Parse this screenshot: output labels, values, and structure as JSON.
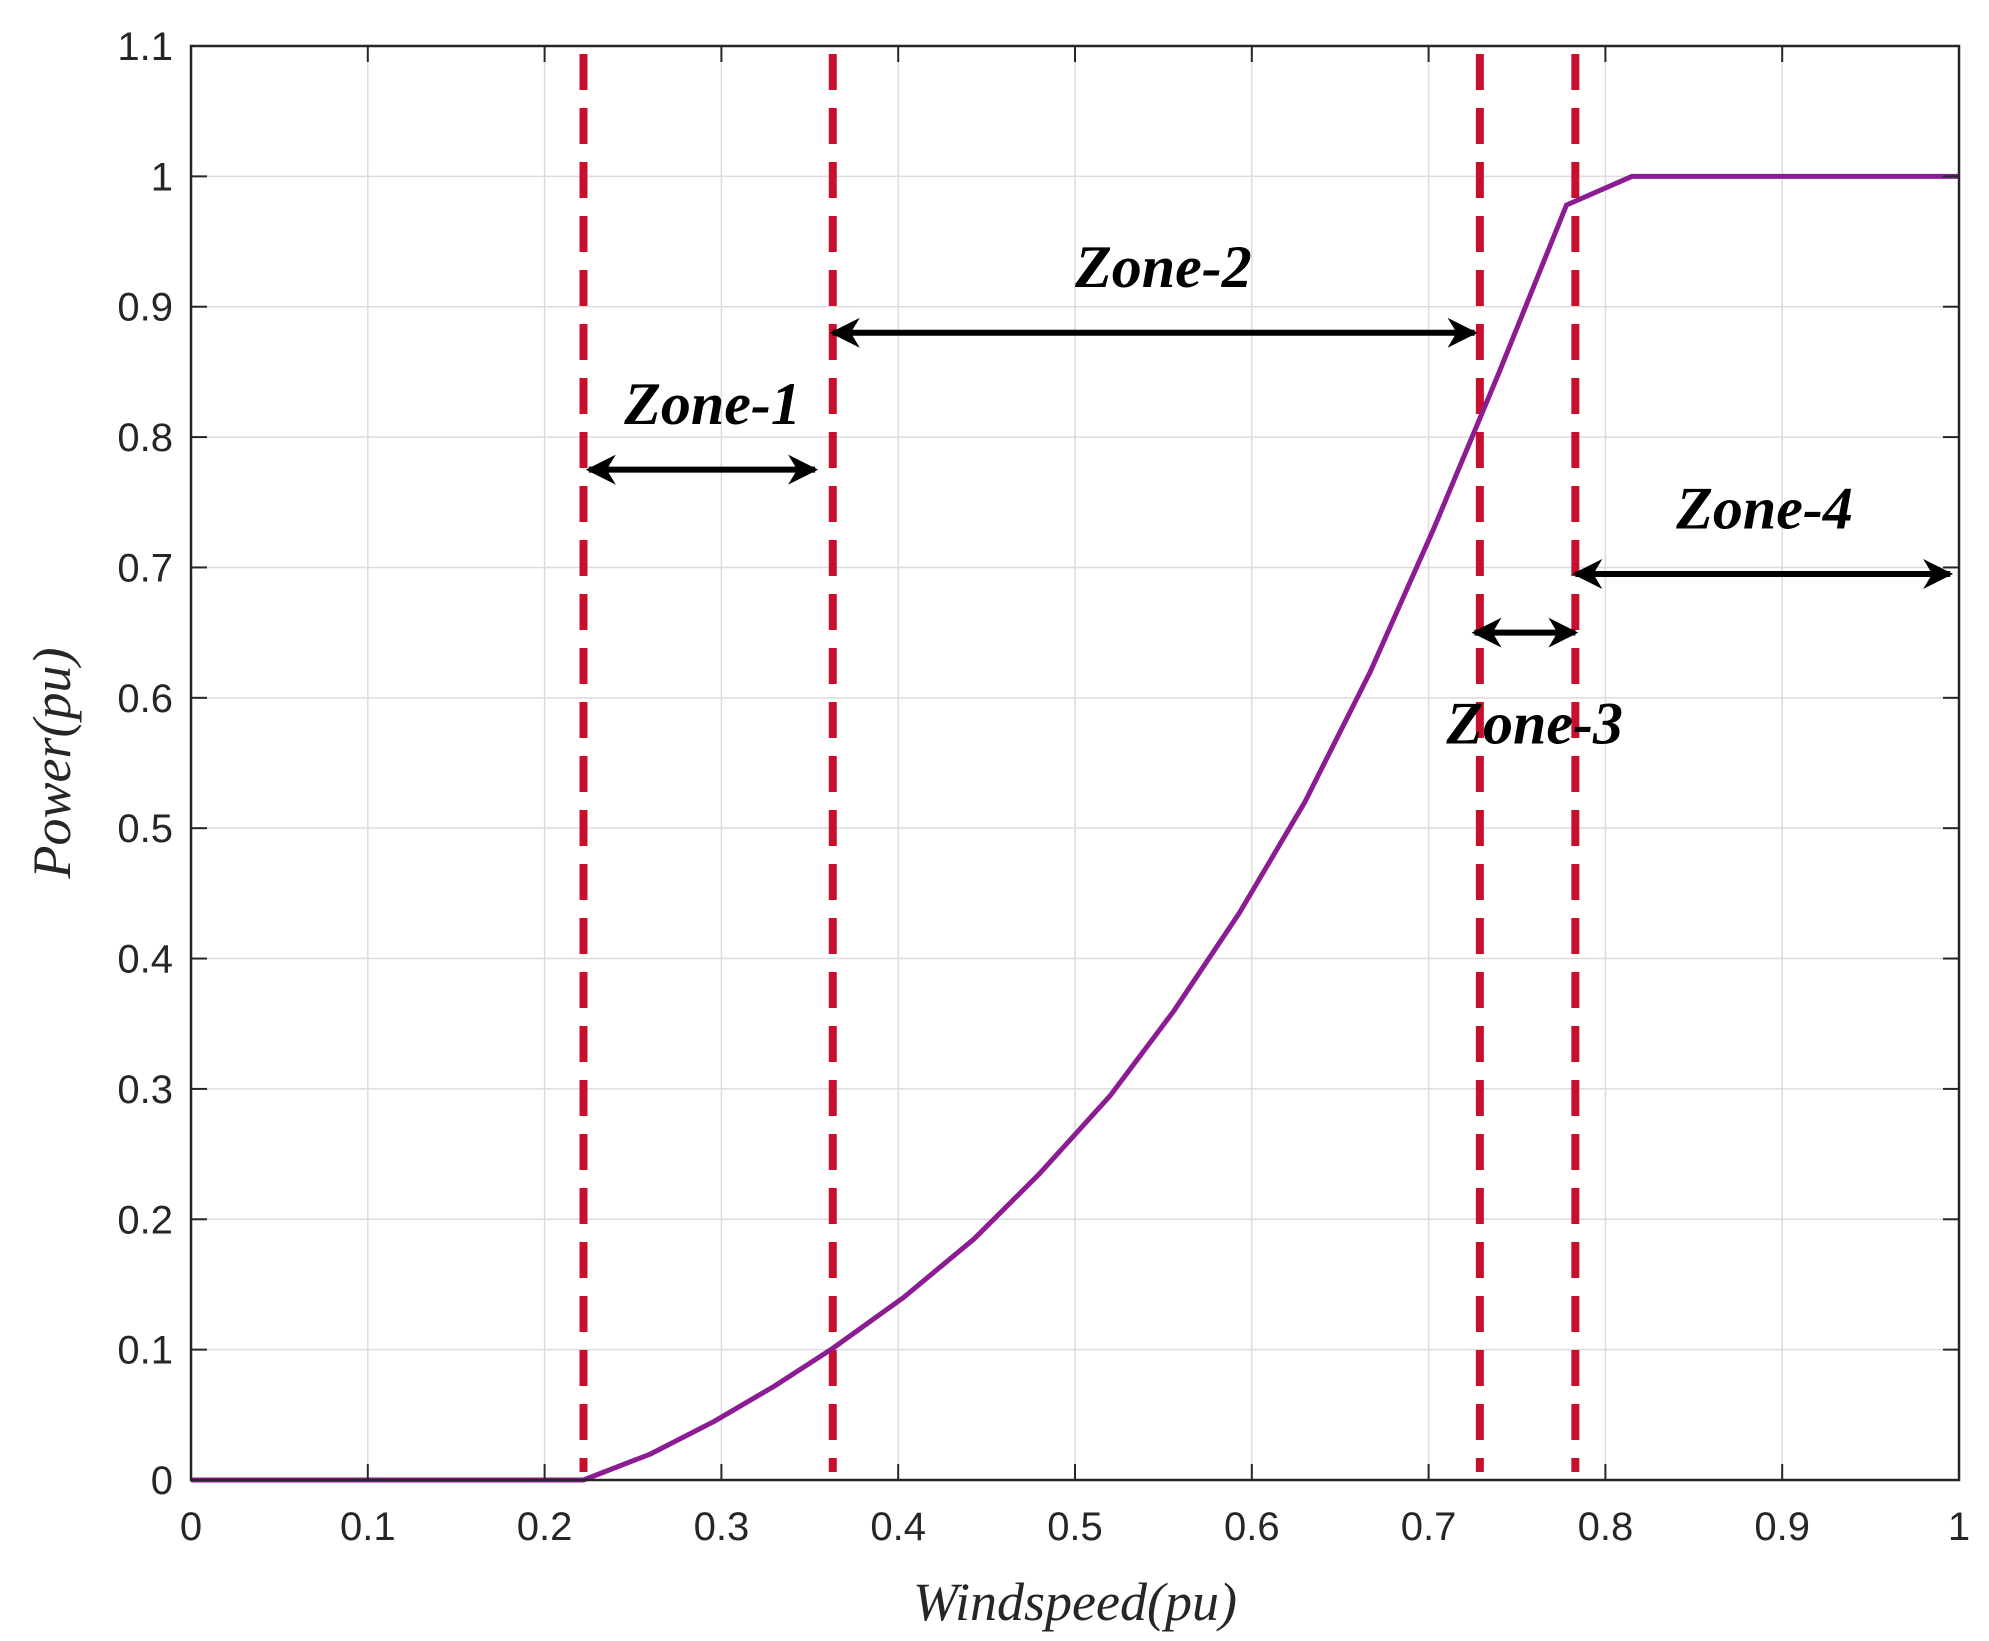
{
  "chart_data": {
    "type": "line",
    "title": "",
    "xlabel": "Windspeed(pu)",
    "ylabel": "Power(pu)",
    "xlim": [
      0,
      1
    ],
    "ylim": [
      0,
      1.1
    ],
    "xticks": [
      "0",
      "0.1",
      "0.2",
      "0.3",
      "0.4",
      "0.5",
      "0.6",
      "0.7",
      "0.8",
      "0.9",
      "1"
    ],
    "yticks": [
      "0",
      "0.1",
      "0.2",
      "0.3",
      "0.4",
      "0.5",
      "0.6",
      "0.7",
      "0.8",
      "0.9",
      "1",
      "1.1"
    ],
    "grid": true,
    "series": [
      {
        "color": "#8b1c92",
        "x": [
          0,
          0.222,
          0.26,
          0.296,
          0.33,
          0.363,
          0.403,
          0.443,
          0.48,
          0.52,
          0.556,
          0.593,
          0.63,
          0.667,
          0.703,
          0.74,
          0.778,
          0.815,
          1.0
        ],
        "y": [
          0,
          0,
          0.02,
          0.045,
          0.072,
          0.101,
          0.14,
          0.185,
          0.235,
          0.295,
          0.36,
          0.435,
          0.52,
          0.62,
          0.73,
          0.85,
          0.978,
          1.0,
          1.0
        ]
      }
    ],
    "vlines": {
      "color": "#c8102e",
      "x": [
        0.222,
        0.363,
        0.729,
        0.783
      ]
    },
    "zones": [
      {
        "label": "Zone-1",
        "x_start": 0.225,
        "x_end": 0.353,
        "arrow_y": 0.775,
        "label_x": 0.295,
        "label_y": 0.81
      },
      {
        "label": "Zone-2",
        "x_start": 0.363,
        "x_end": 0.726,
        "arrow_y": 0.88,
        "label_x": 0.55,
        "label_y": 0.915
      },
      {
        "label": "Zone-3",
        "x_start": 0.726,
        "x_end": 0.783,
        "arrow_y": 0.65,
        "label_x": 0.76,
        "label_y": 0.565
      },
      {
        "label": "Zone-4",
        "x_start": 0.783,
        "x_end": 0.995,
        "arrow_y": 0.695,
        "label_x": 0.89,
        "label_y": 0.73
      }
    ]
  }
}
